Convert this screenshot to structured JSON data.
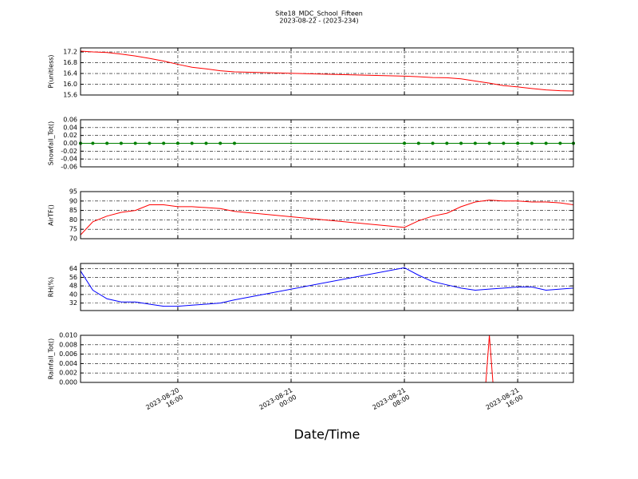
{
  "title": "Site18_MDC_School_Fifteen",
  "subtitle": "2023-08-22 - (2023-234)",
  "xlabel": "Date/Time",
  "xlim": [
    "2023-08-20 09:08",
    "2023-08-21 19:56"
  ],
  "xticks": [
    {
      "value": "2023-08-20 16:00",
      "label": [
        "2023-08-20",
        "16:00"
      ]
    },
    {
      "value": "2023-08-21 00:00",
      "label": [
        "2023-08-21",
        "00:00"
      ]
    },
    {
      "value": "2023-08-21 08:00",
      "label": [
        "2023-08-21",
        "08:00"
      ]
    },
    {
      "value": "2023-08-21 16:00",
      "label": [
        "2023-08-21",
        "16:00"
      ]
    }
  ],
  "chart_data": [
    {
      "type": "line",
      "ylabel": "P(unitless)",
      "x": [
        "2023-08-20 09:08",
        "2023-08-20 10:00",
        "2023-08-20 11:00",
        "2023-08-20 12:00",
        "2023-08-20 13:00",
        "2023-08-20 14:00",
        "2023-08-20 15:00",
        "2023-08-20 16:00",
        "2023-08-20 17:00",
        "2023-08-20 18:00",
        "2023-08-20 19:00",
        "2023-08-20 20:00",
        "2023-08-21 08:00",
        "2023-08-21 09:00",
        "2023-08-21 10:00",
        "2023-08-21 11:00",
        "2023-08-21 12:00",
        "2023-08-21 13:00",
        "2023-08-21 14:00",
        "2023-08-21 15:00",
        "2023-08-21 16:00",
        "2023-08-21 17:00",
        "2023-08-21 18:00",
        "2023-08-21 19:00",
        "2023-08-21 19:56"
      ],
      "series": [
        {
          "color": "#ff0000",
          "values": [
            17.23,
            17.2,
            17.18,
            17.12,
            17.05,
            16.96,
            16.86,
            16.74,
            16.63,
            16.57,
            16.5,
            16.46,
            16.3,
            16.28,
            16.25,
            16.24,
            16.2,
            16.12,
            16.04,
            15.95,
            15.9,
            15.84,
            15.79,
            15.76,
            15.75
          ]
        }
      ],
      "ylim": [
        15.6,
        17.35
      ],
      "yticks": [
        15.6,
        {
          "value": 16,
          "label": "16.0"
        },
        16.4,
        16.8,
        17.2
      ],
      "grid": true
    },
    {
      "type": "line",
      "ylabel": "Snowfall_Tot()",
      "x": [
        "2023-08-20 09:08",
        "2023-08-20 10:00",
        "2023-08-20 11:00",
        "2023-08-20 12:00",
        "2023-08-20 13:00",
        "2023-08-20 14:00",
        "2023-08-20 15:00",
        "2023-08-20 16:00",
        "2023-08-20 17:00",
        "2023-08-20 18:00",
        "2023-08-20 19:00",
        "2023-08-20 20:00",
        "2023-08-21 08:00",
        "2023-08-21 09:00",
        "2023-08-21 10:00",
        "2023-08-21 11:00",
        "2023-08-21 12:00",
        "2023-08-21 13:00",
        "2023-08-21 14:00",
        "2023-08-21 15:00",
        "2023-08-21 16:00",
        "2023-08-21 17:00",
        "2023-08-21 18:00",
        "2023-08-21 19:00",
        "2023-08-21 19:56"
      ],
      "series": [
        {
          "color": "#008000",
          "marker": true,
          "values": [
            0,
            0,
            0,
            0,
            0,
            0,
            0,
            0,
            0,
            0,
            0,
            0,
            0,
            0,
            0,
            0,
            0,
            0,
            0,
            0,
            0,
            0,
            0,
            0,
            0
          ]
        }
      ],
      "ylim": [
        -0.06,
        0.06
      ],
      "yticks": [
        -0.06,
        -0.04,
        -0.02,
        {
          "value": 0,
          "label": "0.00"
        },
        0.02,
        0.04,
        0.06
      ],
      "grid": true
    },
    {
      "type": "line",
      "ylabel": "AirTF()",
      "x": [
        "2023-08-20 09:08",
        "2023-08-20 10:00",
        "2023-08-20 11:00",
        "2023-08-20 12:00",
        "2023-08-20 13:00",
        "2023-08-20 14:00",
        "2023-08-20 15:00",
        "2023-08-20 16:00",
        "2023-08-20 17:00",
        "2023-08-20 18:00",
        "2023-08-20 19:00",
        "2023-08-20 20:00",
        "2023-08-21 08:00",
        "2023-08-21 09:00",
        "2023-08-21 10:00",
        "2023-08-21 11:00",
        "2023-08-21 12:00",
        "2023-08-21 13:00",
        "2023-08-21 14:00",
        "2023-08-21 15:00",
        "2023-08-21 16:00",
        "2023-08-21 17:00",
        "2023-08-21 18:00",
        "2023-08-21 19:00",
        "2023-08-21 19:56"
      ],
      "series": [
        {
          "color": "#ff0000",
          "values": [
            72,
            79,
            82,
            84,
            85,
            88,
            88,
            87,
            87,
            86.5,
            86,
            84.5,
            76,
            79.5,
            82,
            83.5,
            87,
            89.5,
            90.5,
            90,
            90,
            89.5,
            89.5,
            89,
            88
          ]
        }
      ],
      "ylim": [
        70,
        95
      ],
      "yticks": [
        70,
        75,
        80,
        85,
        90,
        95
      ],
      "grid": true
    },
    {
      "type": "line",
      "ylabel": "RH(%)",
      "x": [
        "2023-08-20 09:08",
        "2023-08-20 10:00",
        "2023-08-20 11:00",
        "2023-08-20 12:00",
        "2023-08-20 13:00",
        "2023-08-20 14:00",
        "2023-08-20 15:00",
        "2023-08-20 16:00",
        "2023-08-20 17:00",
        "2023-08-20 18:00",
        "2023-08-20 19:00",
        "2023-08-20 20:00",
        "2023-08-21 08:00",
        "2023-08-21 09:00",
        "2023-08-21 10:00",
        "2023-08-21 11:00",
        "2023-08-21 12:00",
        "2023-08-21 13:00",
        "2023-08-21 14:00",
        "2023-08-21 15:00",
        "2023-08-21 16:00",
        "2023-08-21 17:00",
        "2023-08-21 18:00",
        "2023-08-21 19:00",
        "2023-08-21 19:56"
      ],
      "series": [
        {
          "color": "#0000ff",
          "values": [
            62,
            44,
            36,
            33,
            33,
            31,
            29,
            29,
            30,
            31,
            32,
            35,
            65,
            58,
            52,
            49,
            46,
            44,
            45,
            46,
            47,
            47,
            44,
            45,
            46
          ]
        }
      ],
      "ylim": [
        25,
        69
      ],
      "yticks": [
        32,
        40,
        48,
        56,
        64
      ],
      "grid": true
    },
    {
      "type": "line",
      "ylabel": "Rainfall_Tot()",
      "x": [
        "2023-08-20 09:08",
        "2023-08-21 13:45",
        "2023-08-21 14:00",
        "2023-08-21 14:15",
        "2023-08-21 19:56"
      ],
      "series": [
        {
          "color": "#ff0000",
          "values": [
            0,
            0,
            0.01,
            0,
            0
          ]
        }
      ],
      "ylim": [
        0,
        0.01
      ],
      "yticks": [
        {
          "value": 0,
          "label": "0.000"
        },
        {
          "value": 0.002,
          "label": "0.002"
        },
        {
          "value": 0.004,
          "label": "0.004"
        },
        {
          "value": 0.006,
          "label": "0.006"
        },
        {
          "value": 0.008,
          "label": "0.008"
        },
        {
          "value": 0.01,
          "label": "0.010"
        }
      ],
      "grid": true
    }
  ]
}
